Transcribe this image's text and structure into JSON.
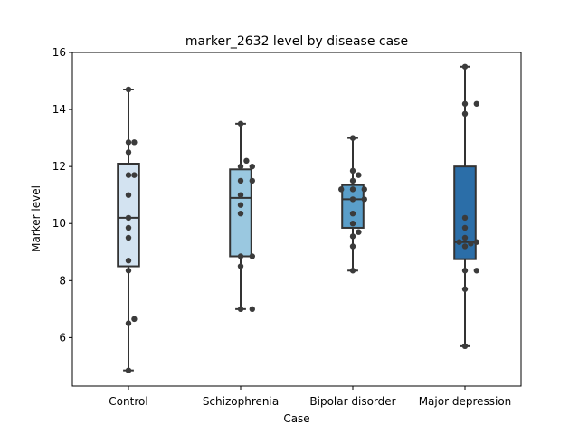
{
  "chart_data": {
    "type": "box",
    "title": "marker_2632 level by disease case",
    "xlabel": "Case",
    "ylabel": "Marker level",
    "ylim": [
      4.3,
      16.0
    ],
    "yticks": [
      "6",
      "8",
      "10",
      "12",
      "14",
      "16"
    ],
    "grid": false,
    "categories": [
      "Control",
      "Schizophrenia",
      "Bipolar disorder",
      "Major depression"
    ],
    "box_colors": [
      "#d3e3f1",
      "#9ac8e0",
      "#5a9ec9",
      "#2b6ea8"
    ],
    "boxes": [
      {
        "min": 4.85,
        "q1": 8.5,
        "median": 10.2,
        "q3": 12.1,
        "max": 14.7
      },
      {
        "min": 7.0,
        "q1": 8.85,
        "median": 10.9,
        "q3": 11.9,
        "max": 13.5
      },
      {
        "min": 8.35,
        "q1": 9.85,
        "median": 10.85,
        "q3": 11.35,
        "max": 13.0
      },
      {
        "min": 5.7,
        "q1": 8.75,
        "median": 9.35,
        "q3": 12.0,
        "max": 15.5
      }
    ],
    "points": [
      [
        4.85,
        6.5,
        6.65,
        8.35,
        8.7,
        9.5,
        9.85,
        10.2,
        11.0,
        11.7,
        11.7,
        12.5,
        12.85,
        12.85,
        14.7
      ],
      [
        7.0,
        7.0,
        8.5,
        8.85,
        8.85,
        10.35,
        10.65,
        11.0,
        11.5,
        11.5,
        12.0,
        12.0,
        12.2,
        13.5
      ],
      [
        8.35,
        9.2,
        9.55,
        9.7,
        10.0,
        10.35,
        10.85,
        10.85,
        11.2,
        11.2,
        11.2,
        11.5,
        11.7,
        11.85,
        13.0
      ],
      [
        5.7,
        7.7,
        8.35,
        8.35,
        9.2,
        9.3,
        9.35,
        9.35,
        9.5,
        9.85,
        10.2,
        13.85,
        14.2,
        14.2,
        15.5
      ]
    ]
  }
}
